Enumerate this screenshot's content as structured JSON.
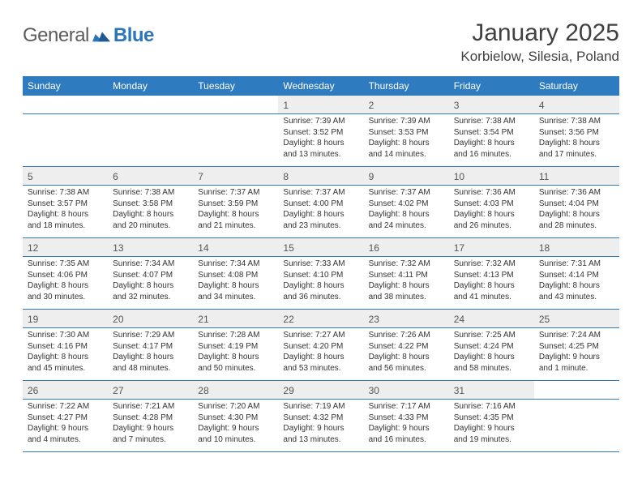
{
  "brand": {
    "word1": "General",
    "word2": "Blue"
  },
  "header": {
    "title": "January 2025",
    "location": "Korbielow, Silesia, Poland"
  },
  "colors": {
    "header_bg": "#2f7bbf",
    "header_fg": "#ffffff",
    "daynum_bg": "#eeeeee",
    "rule": "#2f7bbf",
    "text": "#333333",
    "brand_gray": "#5c5c5c",
    "brand_blue": "#2a76b8"
  },
  "weekdays": [
    "Sunday",
    "Monday",
    "Tuesday",
    "Wednesday",
    "Thursday",
    "Friday",
    "Saturday"
  ],
  "weeks": [
    {
      "nums": [
        "",
        "",
        "",
        "1",
        "2",
        "3",
        "4"
      ],
      "cells": [
        {
          "sunrise": "",
          "sunset": "",
          "daylight": ""
        },
        {
          "sunrise": "",
          "sunset": "",
          "daylight": ""
        },
        {
          "sunrise": "",
          "sunset": "",
          "daylight": ""
        },
        {
          "sunrise": "Sunrise: 7:39 AM",
          "sunset": "Sunset: 3:52 PM",
          "daylight": "Daylight: 8 hours and 13 minutes."
        },
        {
          "sunrise": "Sunrise: 7:39 AM",
          "sunset": "Sunset: 3:53 PM",
          "daylight": "Daylight: 8 hours and 14 minutes."
        },
        {
          "sunrise": "Sunrise: 7:38 AM",
          "sunset": "Sunset: 3:54 PM",
          "daylight": "Daylight: 8 hours and 16 minutes."
        },
        {
          "sunrise": "Sunrise: 7:38 AM",
          "sunset": "Sunset: 3:56 PM",
          "daylight": "Daylight: 8 hours and 17 minutes."
        }
      ]
    },
    {
      "nums": [
        "5",
        "6",
        "7",
        "8",
        "9",
        "10",
        "11"
      ],
      "cells": [
        {
          "sunrise": "Sunrise: 7:38 AM",
          "sunset": "Sunset: 3:57 PM",
          "daylight": "Daylight: 8 hours and 18 minutes."
        },
        {
          "sunrise": "Sunrise: 7:38 AM",
          "sunset": "Sunset: 3:58 PM",
          "daylight": "Daylight: 8 hours and 20 minutes."
        },
        {
          "sunrise": "Sunrise: 7:37 AM",
          "sunset": "Sunset: 3:59 PM",
          "daylight": "Daylight: 8 hours and 21 minutes."
        },
        {
          "sunrise": "Sunrise: 7:37 AM",
          "sunset": "Sunset: 4:00 PM",
          "daylight": "Daylight: 8 hours and 23 minutes."
        },
        {
          "sunrise": "Sunrise: 7:37 AM",
          "sunset": "Sunset: 4:02 PM",
          "daylight": "Daylight: 8 hours and 24 minutes."
        },
        {
          "sunrise": "Sunrise: 7:36 AM",
          "sunset": "Sunset: 4:03 PM",
          "daylight": "Daylight: 8 hours and 26 minutes."
        },
        {
          "sunrise": "Sunrise: 7:36 AM",
          "sunset": "Sunset: 4:04 PM",
          "daylight": "Daylight: 8 hours and 28 minutes."
        }
      ]
    },
    {
      "nums": [
        "12",
        "13",
        "14",
        "15",
        "16",
        "17",
        "18"
      ],
      "cells": [
        {
          "sunrise": "Sunrise: 7:35 AM",
          "sunset": "Sunset: 4:06 PM",
          "daylight": "Daylight: 8 hours and 30 minutes."
        },
        {
          "sunrise": "Sunrise: 7:34 AM",
          "sunset": "Sunset: 4:07 PM",
          "daylight": "Daylight: 8 hours and 32 minutes."
        },
        {
          "sunrise": "Sunrise: 7:34 AM",
          "sunset": "Sunset: 4:08 PM",
          "daylight": "Daylight: 8 hours and 34 minutes."
        },
        {
          "sunrise": "Sunrise: 7:33 AM",
          "sunset": "Sunset: 4:10 PM",
          "daylight": "Daylight: 8 hours and 36 minutes."
        },
        {
          "sunrise": "Sunrise: 7:32 AM",
          "sunset": "Sunset: 4:11 PM",
          "daylight": "Daylight: 8 hours and 38 minutes."
        },
        {
          "sunrise": "Sunrise: 7:32 AM",
          "sunset": "Sunset: 4:13 PM",
          "daylight": "Daylight: 8 hours and 41 minutes."
        },
        {
          "sunrise": "Sunrise: 7:31 AM",
          "sunset": "Sunset: 4:14 PM",
          "daylight": "Daylight: 8 hours and 43 minutes."
        }
      ]
    },
    {
      "nums": [
        "19",
        "20",
        "21",
        "22",
        "23",
        "24",
        "25"
      ],
      "cells": [
        {
          "sunrise": "Sunrise: 7:30 AM",
          "sunset": "Sunset: 4:16 PM",
          "daylight": "Daylight: 8 hours and 45 minutes."
        },
        {
          "sunrise": "Sunrise: 7:29 AM",
          "sunset": "Sunset: 4:17 PM",
          "daylight": "Daylight: 8 hours and 48 minutes."
        },
        {
          "sunrise": "Sunrise: 7:28 AM",
          "sunset": "Sunset: 4:19 PM",
          "daylight": "Daylight: 8 hours and 50 minutes."
        },
        {
          "sunrise": "Sunrise: 7:27 AM",
          "sunset": "Sunset: 4:20 PM",
          "daylight": "Daylight: 8 hours and 53 minutes."
        },
        {
          "sunrise": "Sunrise: 7:26 AM",
          "sunset": "Sunset: 4:22 PM",
          "daylight": "Daylight: 8 hours and 56 minutes."
        },
        {
          "sunrise": "Sunrise: 7:25 AM",
          "sunset": "Sunset: 4:24 PM",
          "daylight": "Daylight: 8 hours and 58 minutes."
        },
        {
          "sunrise": "Sunrise: 7:24 AM",
          "sunset": "Sunset: 4:25 PM",
          "daylight": "Daylight: 9 hours and 1 minute."
        }
      ]
    },
    {
      "nums": [
        "26",
        "27",
        "28",
        "29",
        "30",
        "31",
        ""
      ],
      "cells": [
        {
          "sunrise": "Sunrise: 7:22 AM",
          "sunset": "Sunset: 4:27 PM",
          "daylight": "Daylight: 9 hours and 4 minutes."
        },
        {
          "sunrise": "Sunrise: 7:21 AM",
          "sunset": "Sunset: 4:28 PM",
          "daylight": "Daylight: 9 hours and 7 minutes."
        },
        {
          "sunrise": "Sunrise: 7:20 AM",
          "sunset": "Sunset: 4:30 PM",
          "daylight": "Daylight: 9 hours and 10 minutes."
        },
        {
          "sunrise": "Sunrise: 7:19 AM",
          "sunset": "Sunset: 4:32 PM",
          "daylight": "Daylight: 9 hours and 13 minutes."
        },
        {
          "sunrise": "Sunrise: 7:17 AM",
          "sunset": "Sunset: 4:33 PM",
          "daylight": "Daylight: 9 hours and 16 minutes."
        },
        {
          "sunrise": "Sunrise: 7:16 AM",
          "sunset": "Sunset: 4:35 PM",
          "daylight": "Daylight: 9 hours and 19 minutes."
        },
        {
          "sunrise": "",
          "sunset": "",
          "daylight": ""
        }
      ]
    }
  ]
}
